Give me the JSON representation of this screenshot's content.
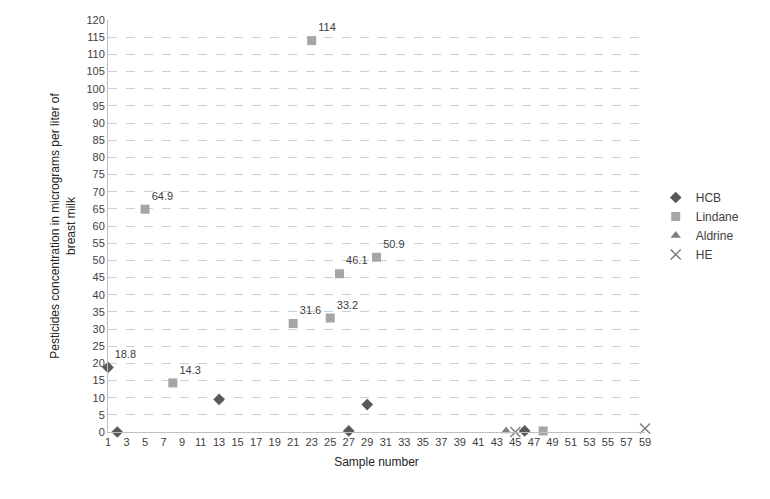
{
  "chart_data": {
    "type": "scatter",
    "x_label": "Sample number",
    "y_label": "Pesticides concentration in micrograms per liter of\nbreast milk",
    "xlim": [
      1,
      59
    ],
    "xticks": [
      1,
      3,
      5,
      7,
      9,
      11,
      13,
      15,
      17,
      19,
      21,
      23,
      25,
      27,
      29,
      31,
      33,
      35,
      37,
      39,
      41,
      43,
      45,
      47,
      49,
      51,
      53,
      55,
      57,
      59
    ],
    "ylim": [
      0,
      120
    ],
    "yticks": [
      0,
      5,
      10,
      15,
      20,
      25,
      30,
      35,
      40,
      45,
      50,
      55,
      60,
      65,
      70,
      75,
      80,
      85,
      90,
      95,
      100,
      105,
      110,
      115,
      120
    ],
    "grid": true,
    "legend": "right",
    "data_labels": true,
    "series": [
      {
        "name": "HCB",
        "color": "#595959",
        "marker": "diamond",
        "x": [
          1,
          2,
          13,
          27,
          29,
          46
        ],
        "values": [
          18.8,
          0,
          9.5,
          0.3,
          8,
          0.3
        ],
        "value_labels": [
          "18.8",
          null,
          null,
          null,
          null,
          null
        ]
      },
      {
        "name": "Lindane",
        "color": "#a6a6a6",
        "marker": "square",
        "x": [
          5,
          8,
          21,
          23,
          25,
          26,
          30,
          48
        ],
        "values": [
          64.9,
          14.3,
          31.6,
          114,
          33.2,
          46.1,
          50.9,
          0.3
        ],
        "value_labels": [
          "64.9",
          "14.3",
          "31.6",
          "114",
          "33.2",
          "46.1",
          "50.9",
          null
        ]
      },
      {
        "name": "Aldrine",
        "color": "#7f7f7f",
        "marker": "triangle",
        "x": [
          44
        ],
        "values": [
          0.3
        ],
        "value_labels": [
          null
        ]
      },
      {
        "name": "HE",
        "color": "#7f7f7f",
        "marker": "x",
        "x": [
          45,
          59
        ],
        "values": [
          0,
          1
        ],
        "value_labels": [
          null,
          null
        ]
      }
    ]
  }
}
